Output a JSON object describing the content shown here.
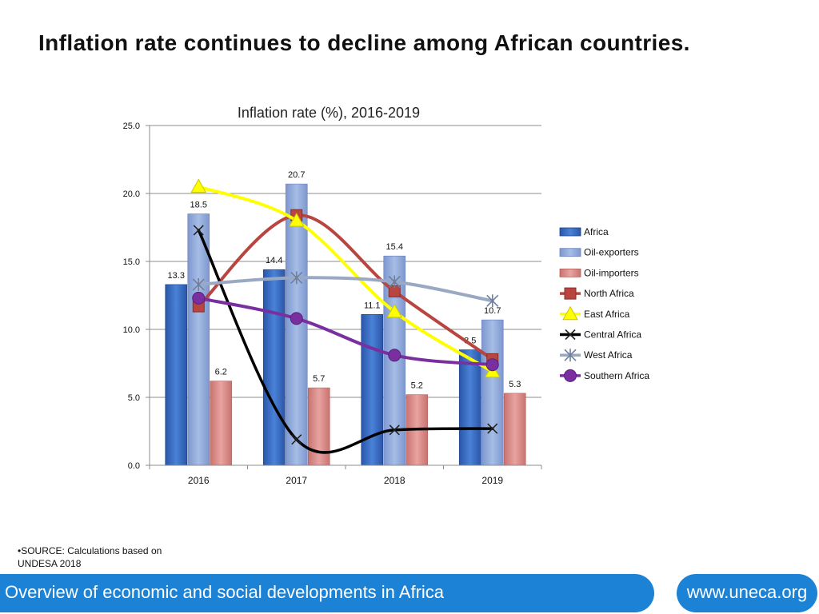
{
  "headline": "Inflation rate continues to decline among African countries.",
  "source_bullet": "•",
  "source_text": "SOURCE: Calculations based on UNDESA 2018",
  "footer": {
    "text": "Overview of economic and social developments in Africa",
    "url": "www.uneca.org"
  },
  "colors": {
    "brand_blue": "#1b82d6"
  },
  "chart_data": {
    "type": "bar+line",
    "title": "Inflation rate (%), 2016-2019",
    "xlabel": "",
    "ylabel": "",
    "ylim": [
      0,
      25
    ],
    "yticks": [
      "0.0",
      "5.0",
      "10.0",
      "15.0",
      "20.0",
      "25.0"
    ],
    "grid": true,
    "legend_position": "right",
    "categories": [
      "2016",
      "2017",
      "2018",
      "2019"
    ],
    "bar_series": [
      {
        "name": "Africa",
        "color": "#3a6fc8",
        "values": [
          13.3,
          14.4,
          11.1,
          8.5
        ],
        "labels": [
          "13.3",
          "14.4",
          "11.1",
          "8.5"
        ]
      },
      {
        "name": "Oil-exporters",
        "color": "#8fa9d9",
        "values": [
          18.5,
          20.7,
          15.4,
          10.7
        ],
        "labels": [
          "18.5",
          "20.7",
          "15.4",
          "10.7"
        ]
      },
      {
        "name": "Oil-importers",
        "color": "#d88987",
        "values": [
          6.2,
          5.7,
          5.2,
          5.3
        ],
        "labels": [
          "6.2",
          "5.7",
          "5.2",
          "5.3"
        ]
      }
    ],
    "line_series": [
      {
        "name": "North Africa",
        "color": "#b84540",
        "marker": "square",
        "values": [
          11.7,
          18.4,
          12.8,
          7.8
        ]
      },
      {
        "name": "East Africa",
        "color": "#ffff00",
        "marker": "triangle",
        "values": [
          20.5,
          18.0,
          11.3,
          6.9
        ]
      },
      {
        "name": "Central Africa",
        "color": "#000000",
        "marker": "x",
        "values": [
          17.3,
          1.9,
          2.6,
          2.7
        ]
      },
      {
        "name": "West Africa",
        "color": "#9aa9c3",
        "marker": "star",
        "values": [
          13.3,
          13.8,
          13.5,
          12.1
        ]
      },
      {
        "name": "Southern Africa",
        "color": "#7a2fa0",
        "marker": "circle",
        "values": [
          12.3,
          10.8,
          8.1,
          7.4
        ]
      }
    ]
  }
}
